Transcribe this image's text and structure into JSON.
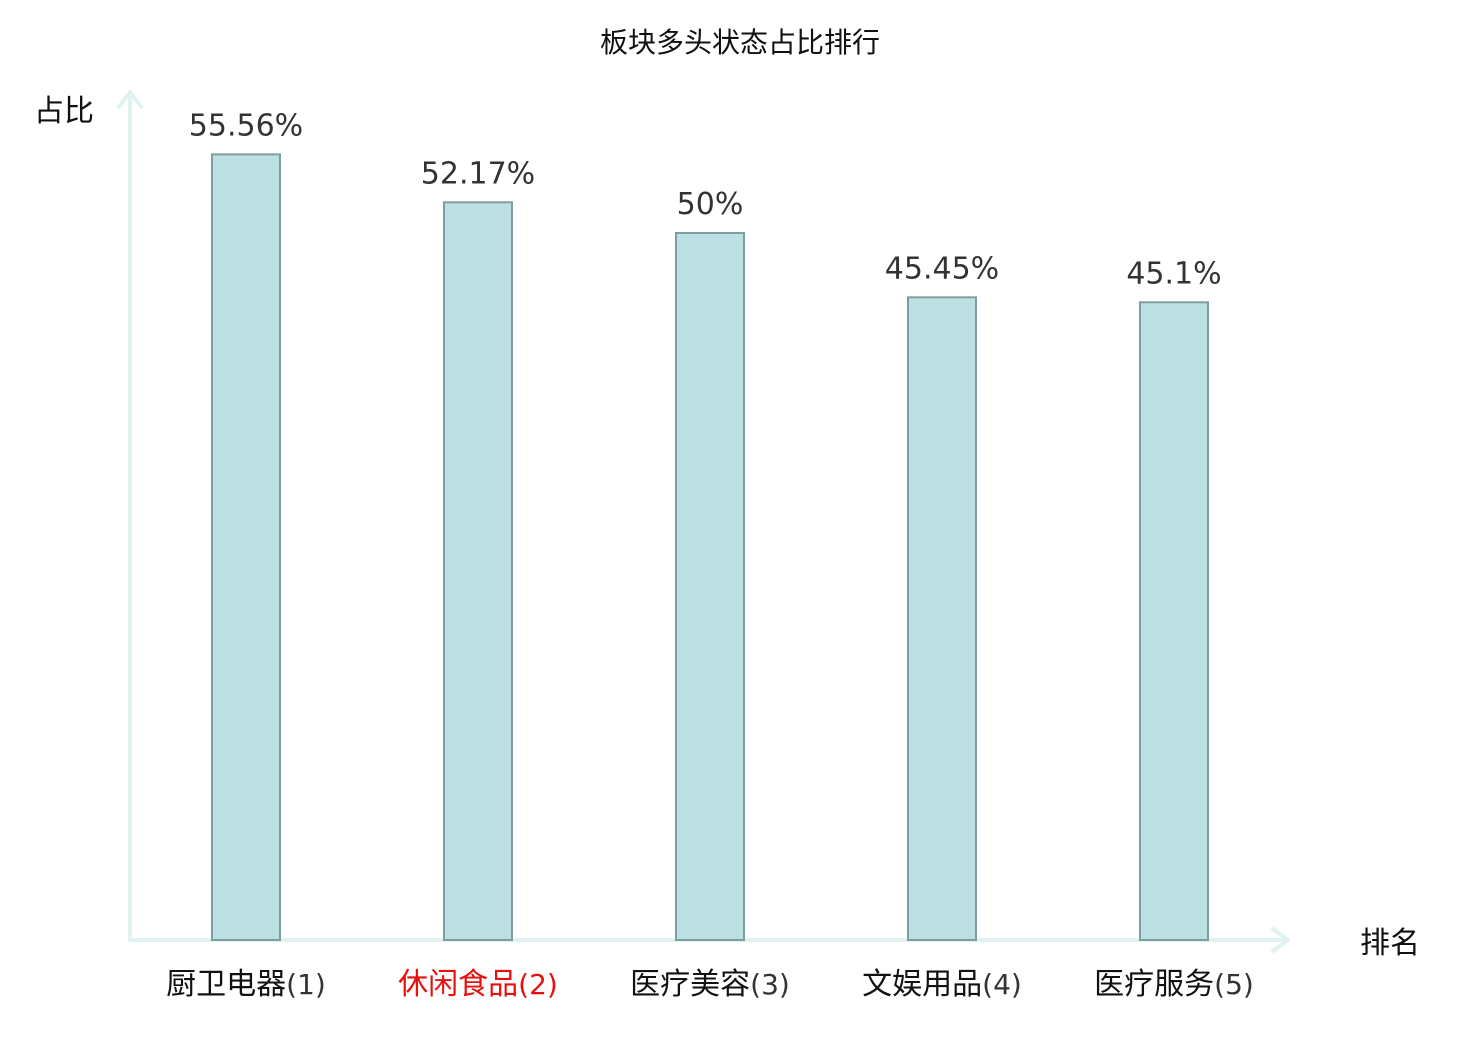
{
  "chart_data": {
    "type": "bar",
    "title": "板块多头状态占比排行",
    "ylabel": "占比",
    "xlabel": "排名",
    "categories": [
      "厨卫电器",
      "休闲食品",
      "医疗美容",
      "文娱用品",
      "医疗服务"
    ],
    "ranks": [
      "(1)",
      "(2)",
      "(3)",
      "(4)",
      "(5)"
    ],
    "values": [
      55.56,
      52.17,
      50,
      45.45,
      45.1
    ],
    "value_labels": [
      "55.56%",
      "52.17%",
      "50%",
      "45.45%",
      "45.1%"
    ],
    "highlight_index": 1,
    "ylim": [
      0,
      60
    ],
    "grid": false,
    "colors": {
      "bar_fill": "#bde1e3",
      "bar_stroke": "#7d9ea1",
      "axis": "#e0f3f0",
      "highlight_text": "#e8100e",
      "normal_text": "#111111",
      "rank_text": "#333333",
      "value_text": "#333333"
    }
  }
}
